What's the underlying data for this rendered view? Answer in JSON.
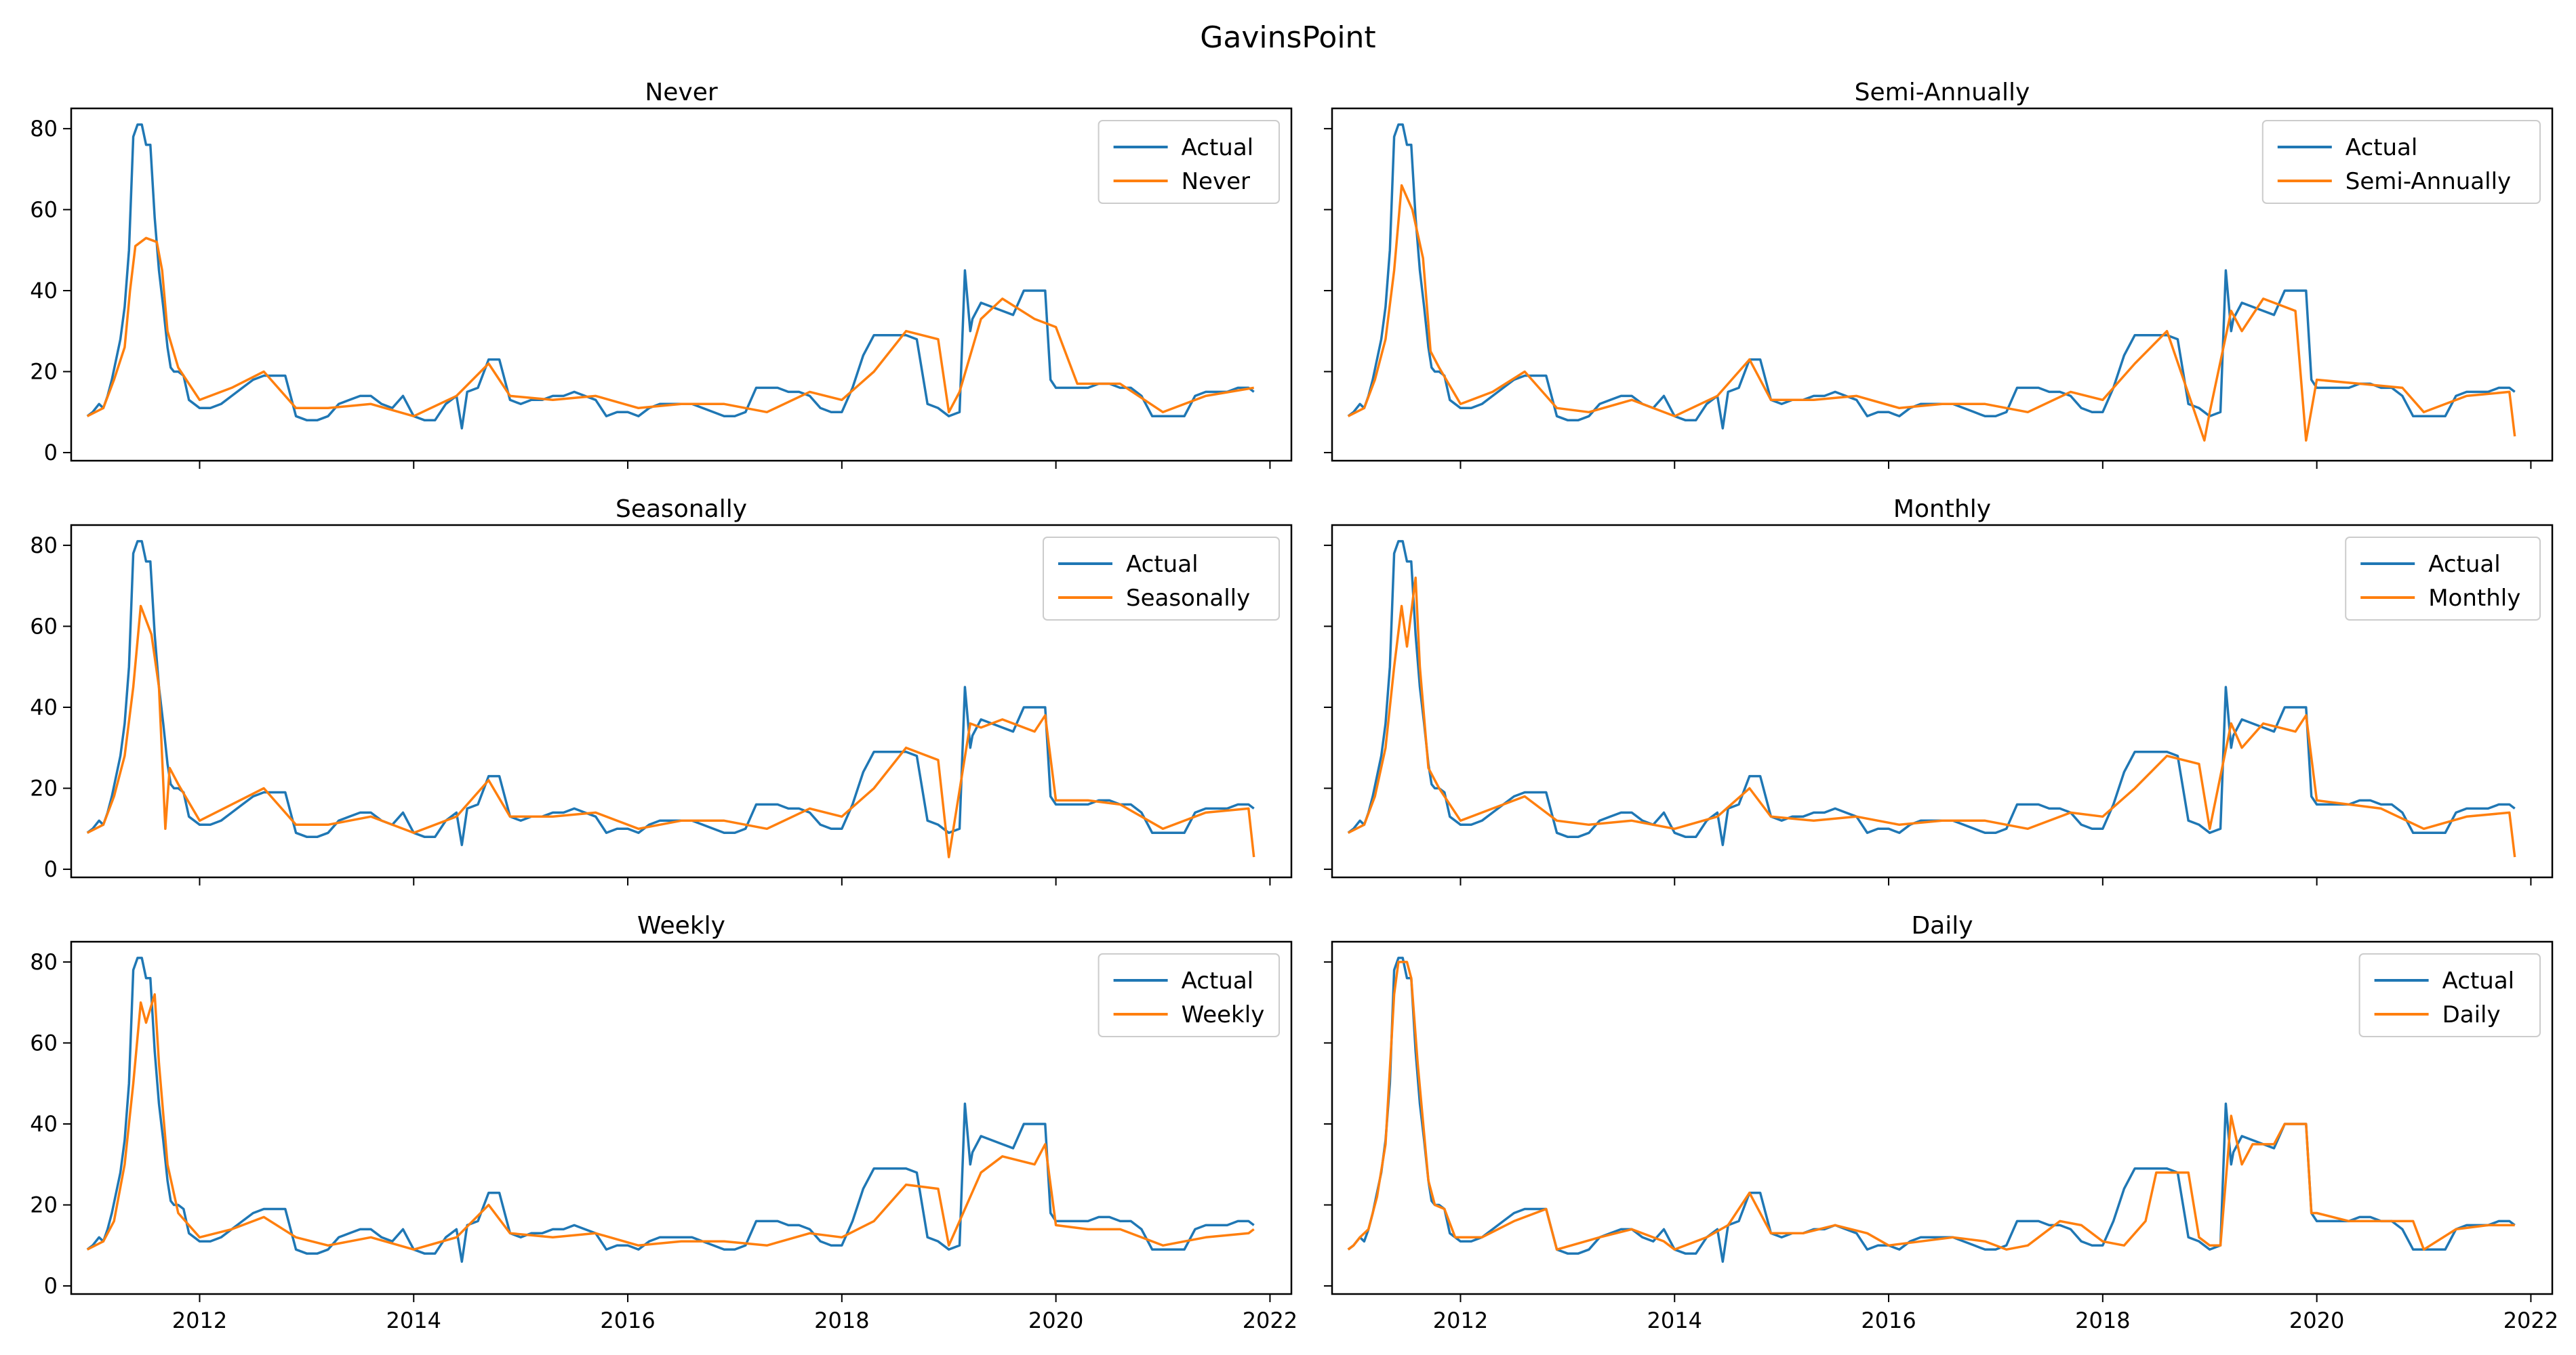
{
  "figure_title": "GavinsPoint",
  "colors": {
    "actual": "#1f77b4",
    "forecast": "#ff7f0e"
  },
  "chart_data": {
    "type": "line",
    "layout": "3x2 grid, shared x and y axes",
    "xlim": [
      2010.8,
      2022.2
    ],
    "ylim": [
      -2,
      85
    ],
    "x_ticks": [
      2012,
      2014,
      2016,
      2018,
      2020,
      2022
    ],
    "x_tick_labels": [
      "2012",
      "2014",
      "2016",
      "2018",
      "2020",
      "2022"
    ],
    "y_ticks": [
      0,
      20,
      40,
      60,
      80
    ],
    "y_tick_labels": [
      "0",
      "20",
      "40",
      "60",
      "80"
    ],
    "legend_position": "upper right",
    "actual": {
      "name": "Actual",
      "x": [
        2010.95,
        2011.0,
        2011.06,
        2011.1,
        2011.14,
        2011.18,
        2011.22,
        2011.26,
        2011.3,
        2011.34,
        2011.38,
        2011.42,
        2011.46,
        2011.5,
        2011.54,
        2011.58,
        2011.62,
        2011.66,
        2011.7,
        2011.73,
        2011.76,
        2011.8,
        2011.85,
        2011.9,
        2011.95,
        2012.0,
        2012.1,
        2012.2,
        2012.3,
        2012.4,
        2012.5,
        2012.6,
        2012.7,
        2012.8,
        2012.9,
        2013.0,
        2013.1,
        2013.2,
        2013.3,
        2013.4,
        2013.5,
        2013.6,
        2013.7,
        2013.8,
        2013.9,
        2014.0,
        2014.1,
        2014.2,
        2014.3,
        2014.4,
        2014.45,
        2014.5,
        2014.6,
        2014.7,
        2014.8,
        2014.9,
        2015.0,
        2015.1,
        2015.2,
        2015.3,
        2015.4,
        2015.5,
        2015.6,
        2015.7,
        2015.8,
        2015.9,
        2016.0,
        2016.1,
        2016.2,
        2016.3,
        2016.4,
        2016.5,
        2016.6,
        2016.7,
        2016.8,
        2016.9,
        2017.0,
        2017.1,
        2017.2,
        2017.3,
        2017.4,
        2017.5,
        2017.6,
        2017.7,
        2017.8,
        2017.9,
        2018.0,
        2018.1,
        2018.2,
        2018.3,
        2018.4,
        2018.5,
        2018.6,
        2018.7,
        2018.8,
        2018.9,
        2019.0,
        2019.1,
        2019.15,
        2019.2,
        2019.22,
        2019.3,
        2019.4,
        2019.5,
        2019.6,
        2019.7,
        2019.8,
        2019.9,
        2019.95,
        2020.0,
        2020.1,
        2020.2,
        2020.3,
        2020.4,
        2020.5,
        2020.6,
        2020.7,
        2020.8,
        2020.9,
        2021.0,
        2021.1,
        2021.2,
        2021.3,
        2021.4,
        2021.5,
        2021.6,
        2021.7,
        2021.8,
        2021.85
      ],
      "y": [
        9,
        10,
        12,
        11,
        14,
        18,
        23,
        28,
        36,
        50,
        78,
        81,
        81,
        76,
        76,
        58,
        45,
        36,
        26,
        21,
        20,
        20,
        19,
        13,
        12,
        11,
        11,
        12,
        14,
        16,
        18,
        19,
        19,
        19,
        9,
        8,
        8,
        9,
        12,
        13,
        14,
        14,
        12,
        11,
        14,
        9,
        8,
        8,
        12,
        14,
        6,
        15,
        16,
        23,
        23,
        13,
        12,
        13,
        13,
        14,
        14,
        15,
        14,
        13,
        9,
        10,
        10,
        9,
        11,
        12,
        12,
        12,
        12,
        11,
        10,
        9,
        9,
        10,
        16,
        16,
        16,
        15,
        15,
        14,
        11,
        10,
        10,
        16,
        24,
        29,
        29,
        29,
        29,
        28,
        12,
        11,
        9,
        10,
        45,
        30,
        33,
        37,
        36,
        35,
        34,
        40,
        40,
        40,
        18,
        16,
        16,
        16,
        16,
        17,
        17,
        16,
        16,
        14,
        9,
        9,
        9,
        9,
        14,
        15,
        15,
        15,
        16,
        16,
        15
      ]
    },
    "panels": [
      {
        "title": "Never",
        "legend": [
          "Actual",
          "Never"
        ],
        "forecast_name": "Never",
        "x": [
          2010.95,
          2011.1,
          2011.2,
          2011.3,
          2011.35,
          2011.4,
          2011.5,
          2011.6,
          2011.65,
          2011.7,
          2011.8,
          2012.0,
          2012.3,
          2012.6,
          2012.9,
          2013.2,
          2013.6,
          2014.0,
          2014.4,
          2014.7,
          2014.9,
          2015.3,
          2015.7,
          2016.1,
          2016.5,
          2016.9,
          2017.3,
          2017.7,
          2018.0,
          2018.3,
          2018.6,
          2018.9,
          2019.0,
          2019.1,
          2019.3,
          2019.5,
          2019.8,
          2020.0,
          2020.2,
          2020.6,
          2021.0,
          2021.4,
          2021.85
        ],
        "y": [
          9,
          11,
          18,
          26,
          40,
          51,
          53,
          52,
          45,
          30,
          21,
          13,
          16,
          20,
          11,
          11,
          12,
          9,
          14,
          22,
          14,
          13,
          14,
          11,
          12,
          12,
          10,
          15,
          13,
          20,
          30,
          28,
          10,
          15,
          33,
          38,
          33,
          31,
          17,
          17,
          10,
          14,
          16
        ]
      },
      {
        "title": "Semi-Annually",
        "legend": [
          "Actual",
          "Semi-Annually"
        ],
        "forecast_name": "Semi-Annually",
        "x": [
          2010.95,
          2011.1,
          2011.2,
          2011.3,
          2011.38,
          2011.45,
          2011.55,
          2011.65,
          2011.72,
          2011.8,
          2012.0,
          2012.3,
          2012.6,
          2012.9,
          2013.2,
          2013.6,
          2014.0,
          2014.4,
          2014.7,
          2014.9,
          2015.3,
          2015.7,
          2016.1,
          2016.5,
          2016.9,
          2017.3,
          2017.7,
          2018.0,
          2018.3,
          2018.6,
          2018.95,
          2019.0,
          2019.2,
          2019.3,
          2019.5,
          2019.8,
          2019.9,
          2020.0,
          2020.4,
          2020.8,
          2021.0,
          2021.4,
          2021.8,
          2021.85
        ],
        "y": [
          9,
          11,
          18,
          28,
          45,
          66,
          60,
          48,
          25,
          21,
          12,
          15,
          20,
          11,
          10,
          13,
          9,
          14,
          23,
          13,
          13,
          14,
          11,
          12,
          12,
          10,
          15,
          13,
          22,
          30,
          3,
          10,
          35,
          30,
          38,
          35,
          3,
          18,
          17,
          16,
          10,
          14,
          15,
          4
        ]
      },
      {
        "title": "Seasonally",
        "legend": [
          "Actual",
          "Seasonally"
        ],
        "forecast_name": "Seasonally",
        "x": [
          2010.95,
          2011.1,
          2011.2,
          2011.3,
          2011.38,
          2011.45,
          2011.55,
          2011.62,
          2011.68,
          2011.72,
          2011.8,
          2012.0,
          2012.3,
          2012.6,
          2012.9,
          2013.2,
          2013.6,
          2014.0,
          2014.4,
          2014.7,
          2014.9,
          2015.3,
          2015.7,
          2016.1,
          2016.5,
          2016.9,
          2017.3,
          2017.7,
          2018.0,
          2018.3,
          2018.6,
          2018.9,
          2019.0,
          2019.2,
          2019.3,
          2019.5,
          2019.8,
          2019.9,
          2020.0,
          2020.3,
          2020.6,
          2021.0,
          2021.4,
          2021.8,
          2021.85
        ],
        "y": [
          9,
          11,
          18,
          28,
          45,
          65,
          58,
          45,
          10,
          25,
          21,
          12,
          16,
          20,
          11,
          11,
          13,
          9,
          13,
          22,
          13,
          13,
          14,
          10,
          12,
          12,
          10,
          15,
          13,
          20,
          30,
          27,
          3,
          36,
          35,
          37,
          34,
          38,
          17,
          17,
          16,
          10,
          14,
          15,
          3
        ]
      },
      {
        "title": "Monthly",
        "legend": [
          "Actual",
          "Monthly"
        ],
        "forecast_name": "Monthly",
        "x": [
          2010.95,
          2011.1,
          2011.2,
          2011.3,
          2011.38,
          2011.45,
          2011.5,
          2011.58,
          2011.62,
          2011.7,
          2011.8,
          2012.0,
          2012.3,
          2012.6,
          2012.9,
          2013.2,
          2013.6,
          2014.0,
          2014.4,
          2014.7,
          2014.9,
          2015.3,
          2015.7,
          2016.1,
          2016.5,
          2016.9,
          2017.3,
          2017.7,
          2018.0,
          2018.3,
          2018.6,
          2018.9,
          2019.0,
          2019.2,
          2019.3,
          2019.5,
          2019.8,
          2019.9,
          2020.0,
          2020.3,
          2020.6,
          2021.0,
          2021.4,
          2021.8,
          2021.85
        ],
        "y": [
          9,
          11,
          18,
          30,
          50,
          65,
          55,
          72,
          50,
          25,
          20,
          12,
          15,
          18,
          12,
          11,
          12,
          10,
          13,
          20,
          13,
          12,
          13,
          11,
          12,
          12,
          10,
          14,
          13,
          20,
          28,
          26,
          10,
          36,
          30,
          36,
          34,
          38,
          17,
          16,
          15,
          10,
          13,
          14,
          3
        ]
      },
      {
        "title": "Weekly",
        "legend": [
          "Actual",
          "Weekly"
        ],
        "forecast_name": "Weekly",
        "x": [
          2010.95,
          2011.1,
          2011.2,
          2011.3,
          2011.38,
          2011.45,
          2011.5,
          2011.58,
          2011.62,
          2011.7,
          2011.8,
          2012.0,
          2012.3,
          2012.6,
          2012.9,
          2013.2,
          2013.6,
          2014.0,
          2014.4,
          2014.7,
          2014.9,
          2015.3,
          2015.7,
          2016.1,
          2016.5,
          2016.9,
          2017.3,
          2017.7,
          2018.0,
          2018.3,
          2018.6,
          2018.9,
          2019.0,
          2019.2,
          2019.3,
          2019.5,
          2019.8,
          2019.9,
          2020.0,
          2020.3,
          2020.6,
          2021.0,
          2021.4,
          2021.8,
          2021.85
        ],
        "y": [
          9,
          11,
          16,
          30,
          50,
          70,
          65,
          72,
          55,
          30,
          18,
          12,
          14,
          17,
          12,
          10,
          12,
          9,
          12,
          20,
          13,
          12,
          13,
          10,
          11,
          11,
          10,
          13,
          12,
          16,
          25,
          24,
          10,
          22,
          28,
          32,
          30,
          35,
          15,
          14,
          14,
          10,
          12,
          13,
          14
        ]
      },
      {
        "title": "Daily",
        "legend": [
          "Actual",
          "Daily"
        ],
        "forecast_name": "Daily",
        "x": [
          2010.95,
          2011.0,
          2011.06,
          2011.14,
          2011.22,
          2011.3,
          2011.38,
          2011.42,
          2011.5,
          2011.54,
          2011.6,
          2011.7,
          2011.76,
          2011.85,
          2011.95,
          2012.2,
          2012.5,
          2012.8,
          2012.9,
          2013.3,
          2013.6,
          2013.9,
          2014.0,
          2014.3,
          2014.5,
          2014.7,
          2014.9,
          2015.2,
          2015.5,
          2015.8,
          2016.0,
          2016.3,
          2016.6,
          2016.9,
          2017.1,
          2017.3,
          2017.6,
          2017.8,
          2018.0,
          2018.2,
          2018.4,
          2018.5,
          2018.8,
          2018.9,
          2019.0,
          2019.1,
          2019.2,
          2019.3,
          2019.4,
          2019.6,
          2019.7,
          2019.9,
          2019.95,
          2020.0,
          2020.3,
          2020.7,
          2020.9,
          2021.0,
          2021.3,
          2021.6,
          2021.85
        ],
        "y": [
          9,
          10,
          12,
          14,
          22,
          35,
          72,
          80,
          80,
          76,
          55,
          26,
          20,
          19,
          12,
          12,
          16,
          19,
          9,
          12,
          14,
          11,
          9,
          12,
          15,
          23,
          13,
          13,
          15,
          13,
          10,
          11,
          12,
          11,
          9,
          10,
          16,
          15,
          11,
          10,
          16,
          28,
          28,
          12,
          10,
          10,
          42,
          30,
          35,
          35,
          40,
          40,
          18,
          18,
          16,
          16,
          16,
          9,
          14,
          15,
          15
        ]
      }
    ]
  }
}
